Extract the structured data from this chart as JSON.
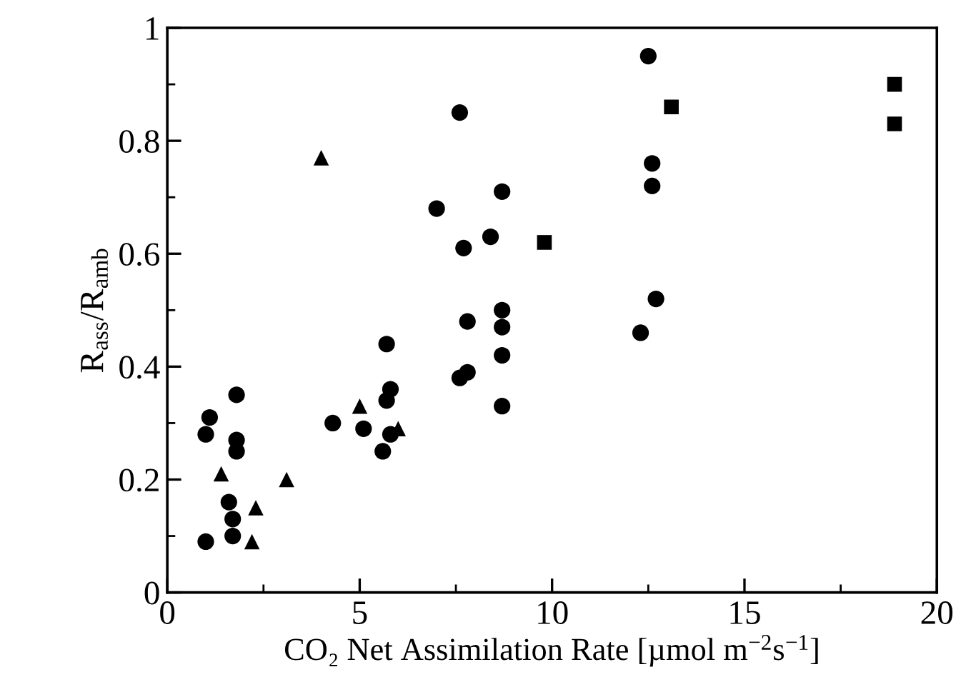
{
  "chart_data": {
    "type": "scatter",
    "xlabel": "CO₂ Net Assimilation Rate [µmol m$^{−2}$s$^{−1}$]",
    "ylabel": "R$_{ass}$/R$_{amb}$",
    "xlim": [
      0,
      20
    ],
    "ylim": [
      0,
      1
    ],
    "xticks": [
      0,
      5,
      10,
      15,
      20
    ],
    "yticks": [
      0,
      0.2,
      0.4,
      0.6,
      0.8,
      1
    ],
    "grid": false,
    "legend": false,
    "series": [
      {
        "color": "#000000",
        "marker": "circle",
        "x": [
          1.0,
          1.1,
          1.0,
          1.8,
          1.8,
          1.8,
          1.6,
          1.7,
          1.7,
          4.3,
          5.1,
          5.7,
          5.8,
          5.7,
          5.6,
          5.8,
          7.6,
          7.0,
          7.7,
          8.4,
          8.7,
          7.8,
          7.6,
          7.8,
          8.7,
          8.7,
          8.7,
          8.7,
          12.5,
          12.6,
          12.6,
          12.7,
          12.3
        ],
        "values": [
          0.09,
          0.31,
          0.28,
          0.35,
          0.27,
          0.25,
          0.16,
          0.13,
          0.1,
          0.3,
          0.29,
          0.44,
          0.36,
          0.34,
          0.25,
          0.28,
          0.85,
          0.68,
          0.61,
          0.63,
          0.71,
          0.48,
          0.38,
          0.39,
          0.5,
          0.47,
          0.42,
          0.33,
          0.95,
          0.76,
          0.72,
          0.52,
          0.46
        ]
      },
      {
        "color": "#000000",
        "marker": "triangle",
        "x": [
          4.0,
          1.4,
          3.1,
          2.3,
          2.2,
          5.0,
          6.0
        ],
        "values": [
          0.77,
          0.21,
          0.2,
          0.15,
          0.09,
          0.33,
          0.29
        ]
      },
      {
        "color": "#000000",
        "marker": "square",
        "x": [
          9.8,
          13.1,
          18.9,
          18.9
        ],
        "values": [
          0.62,
          0.86,
          0.9,
          0.83
        ]
      }
    ]
  }
}
